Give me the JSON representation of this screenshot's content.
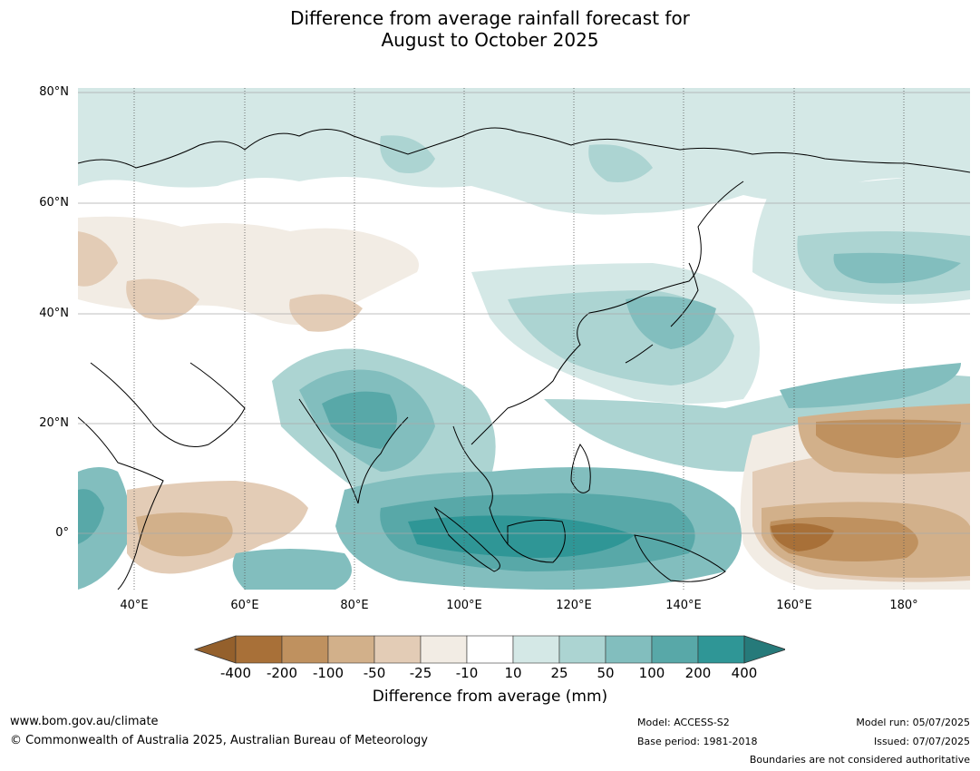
{
  "title_line1": "Difference from average rainfall forecast for",
  "title_line2": "August to October 2025",
  "map": {
    "lat_labels": [
      "80°N",
      "60°N",
      "40°N",
      "20°N",
      "0°"
    ],
    "lon_labels": [
      "40°E",
      "60°E",
      "80°E",
      "100°E",
      "120°E",
      "140°E",
      "160°E",
      "180°"
    ]
  },
  "colorbar": {
    "labels": [
      "-400",
      "-200",
      "-100",
      "-50",
      "-25",
      "-10",
      "10",
      "25",
      "50",
      "100",
      "200",
      "400"
    ],
    "colors": [
      "#a87038",
      "#bf915f",
      "#d2b08a",
      "#e3ccb6",
      "#f2ece4",
      "#ffffff",
      "#d4e8e6",
      "#acd4d2",
      "#82bebe",
      "#58a8a8",
      "#2f9696"
    ],
    "low_arrow_color": "#94602c",
    "high_arrow_color": "#267a7a",
    "title": "Difference from average (mm)"
  },
  "footer": {
    "website": "www.bom.gov.au/climate",
    "copyright": "© Commonwealth of Australia 2025, Australian Bureau of Meteorology",
    "model": "Model: ACCESS-S2",
    "base_period": "Base period: 1981-2018",
    "model_run": "Model run: 05/07/2025",
    "issued": "Issued: 07/07/2025",
    "disclaimer": "Boundaries are not considered authoritative"
  }
}
